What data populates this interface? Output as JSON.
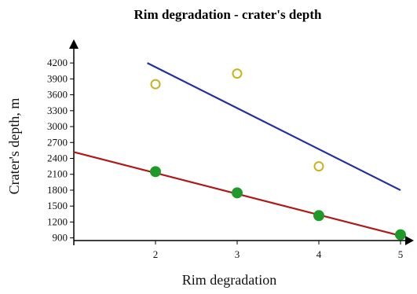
{
  "chart_data": {
    "type": "scatter",
    "title": "Rim degradation - crater's depth",
    "xlabel": "Rim degradation",
    "ylabel": "Crater's depth, m",
    "xlim": [
      1,
      5
    ],
    "ylim": [
      850,
      4350
    ],
    "x_ticks": [
      2,
      3,
      4,
      5
    ],
    "y_ticks": [
      900,
      1200,
      1500,
      1800,
      2100,
      2400,
      2700,
      3000,
      3300,
      3600,
      3900,
      4200
    ],
    "grid": false,
    "legend": "none",
    "series": [
      {
        "marker": "filled-circle",
        "marker_color": "#1f9a2a",
        "points": [
          {
            "x": 2,
            "y": 2150
          },
          {
            "x": 3,
            "y": 1750
          },
          {
            "x": 4,
            "y": 1320
          },
          {
            "x": 5,
            "y": 960
          }
        ]
      },
      {
        "marker": "open-circle",
        "marker_color": "#c8b21c",
        "points": [
          {
            "x": 2,
            "y": 3800
          },
          {
            "x": 3,
            "y": 4000
          },
          {
            "x": 4,
            "y": 2250
          }
        ]
      }
    ],
    "trendlines": [
      {
        "color": "#b01818",
        "x": [
          1,
          5
        ],
        "y": [
          2520,
          940
        ]
      },
      {
        "color": "#1f2ea3",
        "x": [
          1.9,
          5
        ],
        "y": [
          4200,
          1800
        ]
      }
    ]
  }
}
